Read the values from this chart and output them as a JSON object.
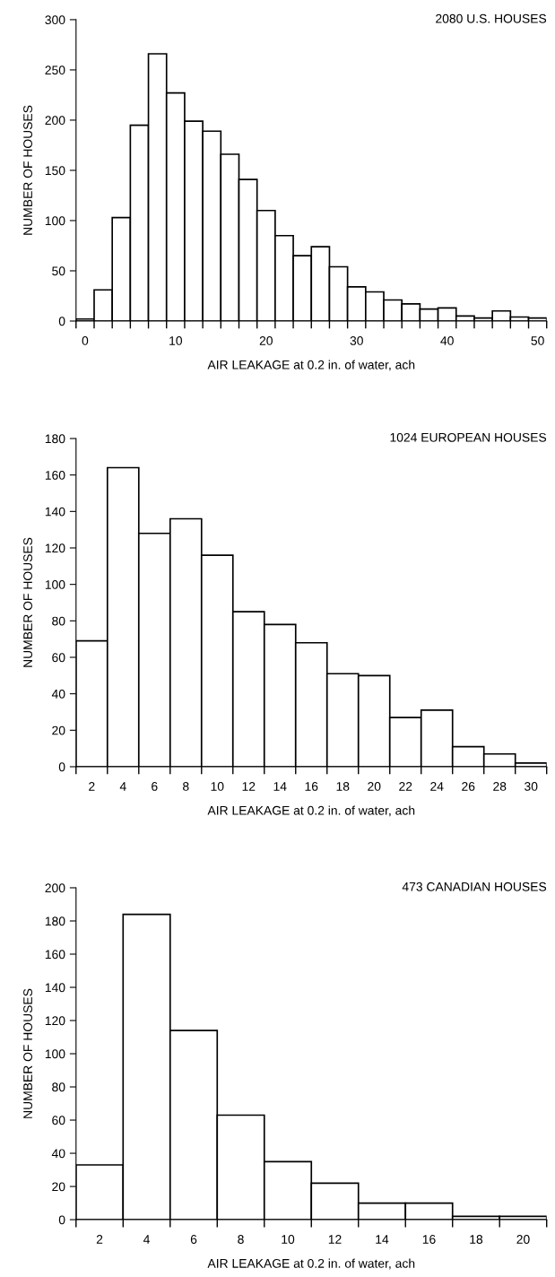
{
  "chart_data": [
    {
      "type": "histogram",
      "title": "2080 U.S. HOUSES",
      "xlabel": "AIR LEAKAGE at 0.2 in. of water, ach",
      "ylabel": "NUMBER OF HOUSES",
      "color": "#ffffff",
      "bins": [
        -1,
        1,
        3,
        5,
        7,
        9,
        11,
        13,
        15,
        17,
        19,
        21,
        23,
        25,
        27,
        29,
        31,
        33,
        35,
        37,
        39,
        41,
        43,
        45,
        47,
        49,
        51
      ],
      "values": [
        2,
        31,
        103,
        195,
        266,
        227,
        199,
        189,
        166,
        141,
        110,
        85,
        65,
        74,
        54,
        34,
        29,
        21,
        17,
        12,
        13,
        5,
        3,
        10,
        4,
        3
      ],
      "xlim": [
        -1,
        51
      ],
      "xticks": [
        0,
        10,
        20,
        30,
        40,
        50
      ],
      "ylim": [
        0,
        300
      ],
      "yticks": [
        0,
        50,
        100,
        150,
        200,
        250,
        300
      ],
      "grid": false,
      "legend": false
    },
    {
      "type": "histogram",
      "title": "1024 EUROPEAN HOUSES",
      "xlabel": "AIR LEAKAGE at 0.2 in. of water, ach",
      "ylabel": "NUMBER OF HOUSES",
      "color": "#ffffff",
      "bins": [
        1,
        3,
        5,
        7,
        9,
        11,
        13,
        15,
        17,
        19,
        21,
        23,
        25,
        27,
        29,
        31
      ],
      "values": [
        69,
        164,
        128,
        136,
        116,
        85,
        78,
        68,
        51,
        50,
        27,
        31,
        11,
        7,
        2
      ],
      "xlim": [
        1,
        31
      ],
      "xticks": [
        2,
        4,
        6,
        8,
        10,
        12,
        14,
        16,
        18,
        20,
        22,
        24,
        26,
        28,
        30
      ],
      "ylim": [
        0,
        180
      ],
      "yticks": [
        0,
        20,
        40,
        60,
        80,
        100,
        120,
        140,
        160,
        180
      ],
      "grid": false,
      "legend": false
    },
    {
      "type": "histogram",
      "title": "473 CANADIAN HOUSES",
      "xlabel": "AIR LEAKAGE at 0.2 in. of water, ach",
      "ylabel": "NUMBER OF HOUSES",
      "color": "#ffffff",
      "bins": [
        1,
        3,
        5,
        7,
        9,
        11,
        13,
        15,
        17,
        19,
        21
      ],
      "values": [
        33,
        184,
        114,
        63,
        35,
        22,
        10,
        10,
        2,
        2
      ],
      "xlim": [
        1,
        21
      ],
      "xticks": [
        2,
        4,
        6,
        8,
        10,
        12,
        14,
        16,
        18,
        20
      ],
      "ylim": [
        0,
        200
      ],
      "yticks": [
        0,
        20,
        40,
        60,
        80,
        100,
        120,
        140,
        160,
        180,
        200
      ],
      "grid": false,
      "legend": false
    }
  ]
}
